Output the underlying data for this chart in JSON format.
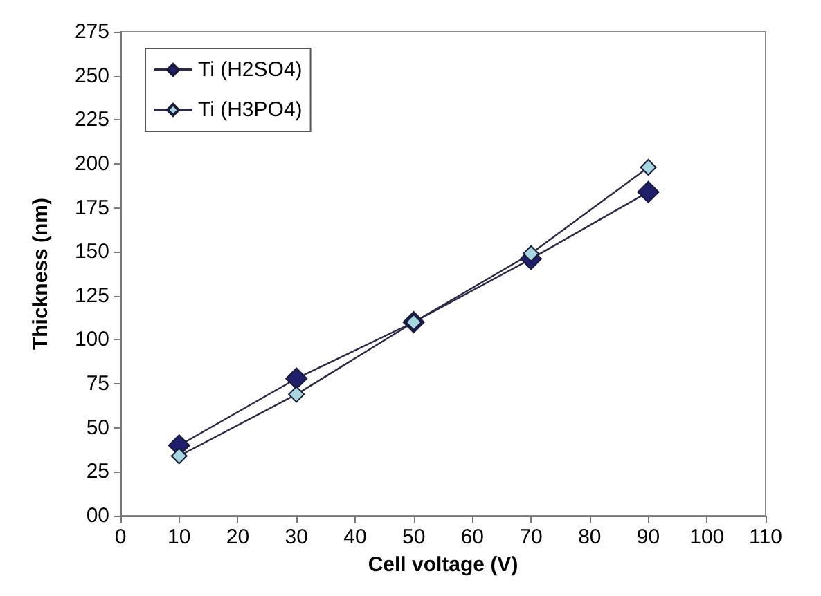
{
  "chart_data": {
    "type": "line",
    "xlabel": "Cell voltage (V)",
    "ylabel": "Thickness (nm)",
    "x": [
      10,
      30,
      50,
      70,
      90
    ],
    "series": [
      {
        "name": "Ti (H2SO4)",
        "color": "#1f1f6b",
        "values": [
          40,
          78,
          110,
          146,
          184
        ]
      },
      {
        "name": "Ti (H3PO4)",
        "color": "#a6d6de",
        "values": [
          34,
          69,
          110,
          149,
          198
        ]
      }
    ],
    "xlim": [
      0,
      110
    ],
    "xticks": [
      0,
      10,
      20,
      30,
      40,
      50,
      60,
      70,
      80,
      90,
      100,
      110
    ],
    "ylim": [
      0,
      275
    ],
    "yticks": [
      {
        "value": 0,
        "label": "00"
      },
      25,
      50,
      75,
      100,
      125,
      150,
      175,
      200,
      225,
      250,
      275
    ],
    "grid": false,
    "legend": "top left",
    "marker": "diamond",
    "line_style": "solid"
  }
}
